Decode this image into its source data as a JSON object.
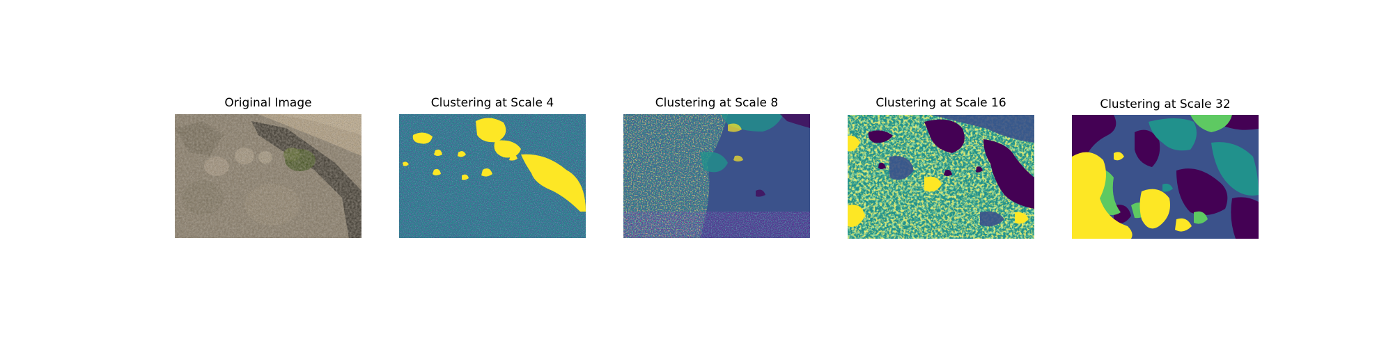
{
  "figure": {
    "panels": [
      {
        "title": "Original Image",
        "kind": "photo"
      },
      {
        "title": "Clustering at Scale 4",
        "kind": "cluster-map"
      },
      {
        "title": "Clustering at Scale 8",
        "kind": "cluster-map"
      },
      {
        "title": "Clustering at Scale 16",
        "kind": "cluster-map"
      },
      {
        "title": "Clustering at Scale 32",
        "kind": "cluster-map"
      }
    ],
    "colormap": {
      "name": "viridis",
      "colors": [
        "#440154",
        "#3b528b",
        "#21918c",
        "#5ec962",
        "#fde725"
      ]
    },
    "photo_palette": {
      "ground": "#8a7f6d",
      "dry_brush": "#a89a85",
      "shadow": "#2e2b25",
      "green_shrub": "#4c5a2a",
      "light_patch": "#c9b99c"
    }
  }
}
